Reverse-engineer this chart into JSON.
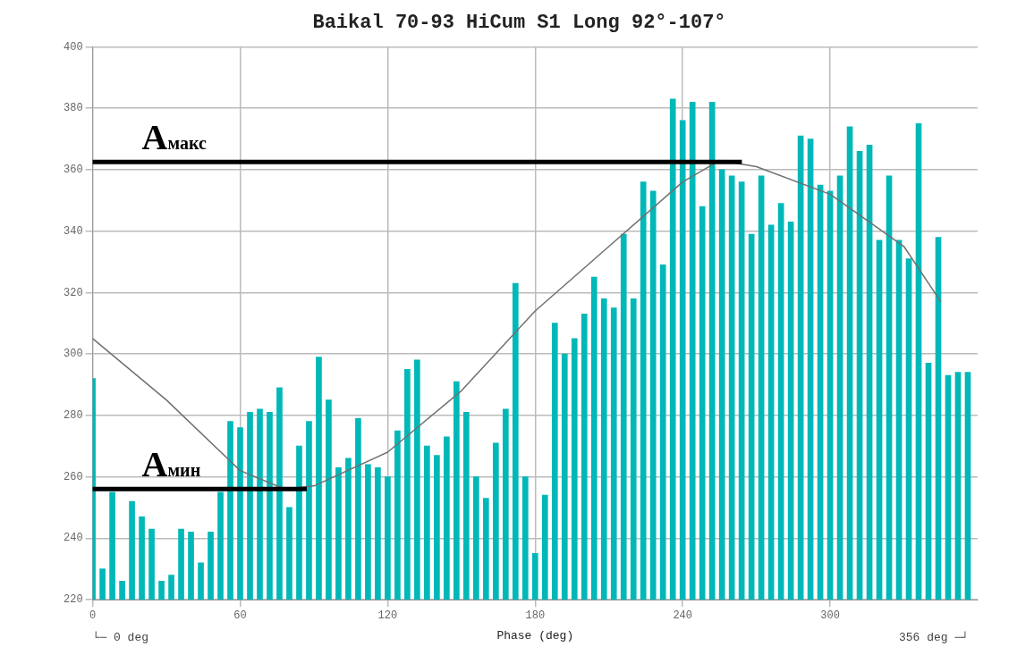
{
  "chart_data": {
    "type": "bar",
    "title": "Baikal 70-93 HiCum S1 Long 92°-107°",
    "xlabel": "Phase (deg)",
    "x": [
      0,
      4,
      8,
      12,
      16,
      20,
      24,
      28,
      32,
      36,
      40,
      44,
      48,
      52,
      56,
      60,
      64,
      68,
      72,
      76,
      80,
      84,
      88,
      92,
      96,
      100,
      104,
      108,
      112,
      116,
      120,
      124,
      128,
      132,
      136,
      140,
      144,
      148,
      152,
      156,
      160,
      164,
      168,
      172,
      176,
      180,
      184,
      188,
      192,
      196,
      200,
      204,
      208,
      212,
      216,
      220,
      224,
      228,
      232,
      236,
      240,
      244,
      248,
      252,
      256,
      260,
      264,
      268,
      272,
      276,
      280,
      284,
      288,
      292,
      296,
      300,
      304,
      308,
      312,
      316,
      320,
      324,
      328,
      332,
      336,
      340,
      344,
      348,
      352,
      356
    ],
    "series": [
      {
        "color": "#00b8b8",
        "values": [
          292,
          230,
          255,
          226,
          252,
          247,
          243,
          226,
          228,
          243,
          242,
          232,
          242,
          255,
          278,
          276,
          281,
          282,
          281,
          289,
          250,
          270,
          278,
          299,
          285,
          263,
          266,
          279,
          264,
          263,
          260,
          275,
          295,
          298,
          270,
          267,
          273,
          291,
          281,
          260,
          253,
          271,
          282,
          323,
          260,
          235,
          254,
          310,
          300,
          305,
          313,
          325,
          318,
          315,
          339,
          318,
          356,
          353,
          329,
          383,
          376,
          382,
          348,
          382,
          360,
          358,
          356,
          339,
          358,
          342,
          349,
          343,
          371,
          370,
          355,
          353,
          358,
          374,
          366,
          368,
          337,
          358,
          337,
          331,
          375,
          297,
          338,
          293,
          294,
          294
        ]
      },
      {
        "type": "line",
        "color": "#707070",
        "x": [
          0,
          30,
          60,
          78,
          90,
          120,
          150,
          180,
          210,
          240,
          255,
          270,
          300,
          330,
          345
        ],
        "values": [
          305,
          285,
          262,
          256,
          257,
          268,
          288,
          314,
          335,
          356,
          363,
          361,
          352,
          335,
          317
        ]
      }
    ],
    "xlim": [
      0,
      360
    ],
    "xticks": [
      0,
      60,
      120,
      180,
      240,
      300
    ],
    "ylim": [
      220,
      400
    ],
    "yticks": [
      220,
      240,
      260,
      280,
      300,
      320,
      340,
      360,
      380,
      400
    ],
    "grid": true,
    "marker": "none",
    "legend": false,
    "ref_lines": [
      {
        "axis": "y",
        "value": 362.5,
        "label": "A$_{макс}$",
        "color": "#000000"
      },
      {
        "axis": "y",
        "value": 256,
        "label": "A$_{мин}$",
        "color": "#000000"
      }
    ],
    "annotations": [
      "└─ 0 deg",
      "356 deg ─┘"
    ]
  }
}
